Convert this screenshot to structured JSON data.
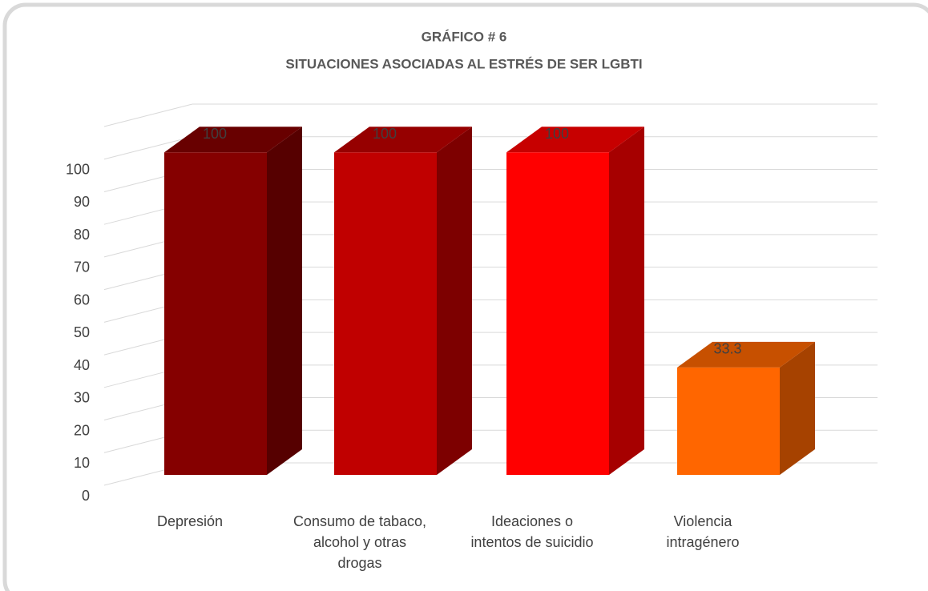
{
  "chart_data": {
    "type": "bar3d",
    "title": "GRÁFICO # 6",
    "subtitle": "SITUACIONES ASOCIADAS AL ESTRÉS DE SER LGBTI",
    "categories": [
      "Depresión",
      "Consumo de tabaco,\nalcohol y otras\ndrogas",
      "Ideaciones o\nintentos de suicidio",
      "Violencia\nintragénero"
    ],
    "values": [
      100,
      100,
      100,
      33.3
    ],
    "colors": [
      "#850000",
      "#c00000",
      "#ff0000",
      "#ff6600"
    ],
    "ylim": [
      0,
      110
    ],
    "yticks": [
      0,
      10,
      20,
      30,
      40,
      50,
      60,
      70,
      80,
      90,
      100
    ],
    "grid": true
  }
}
